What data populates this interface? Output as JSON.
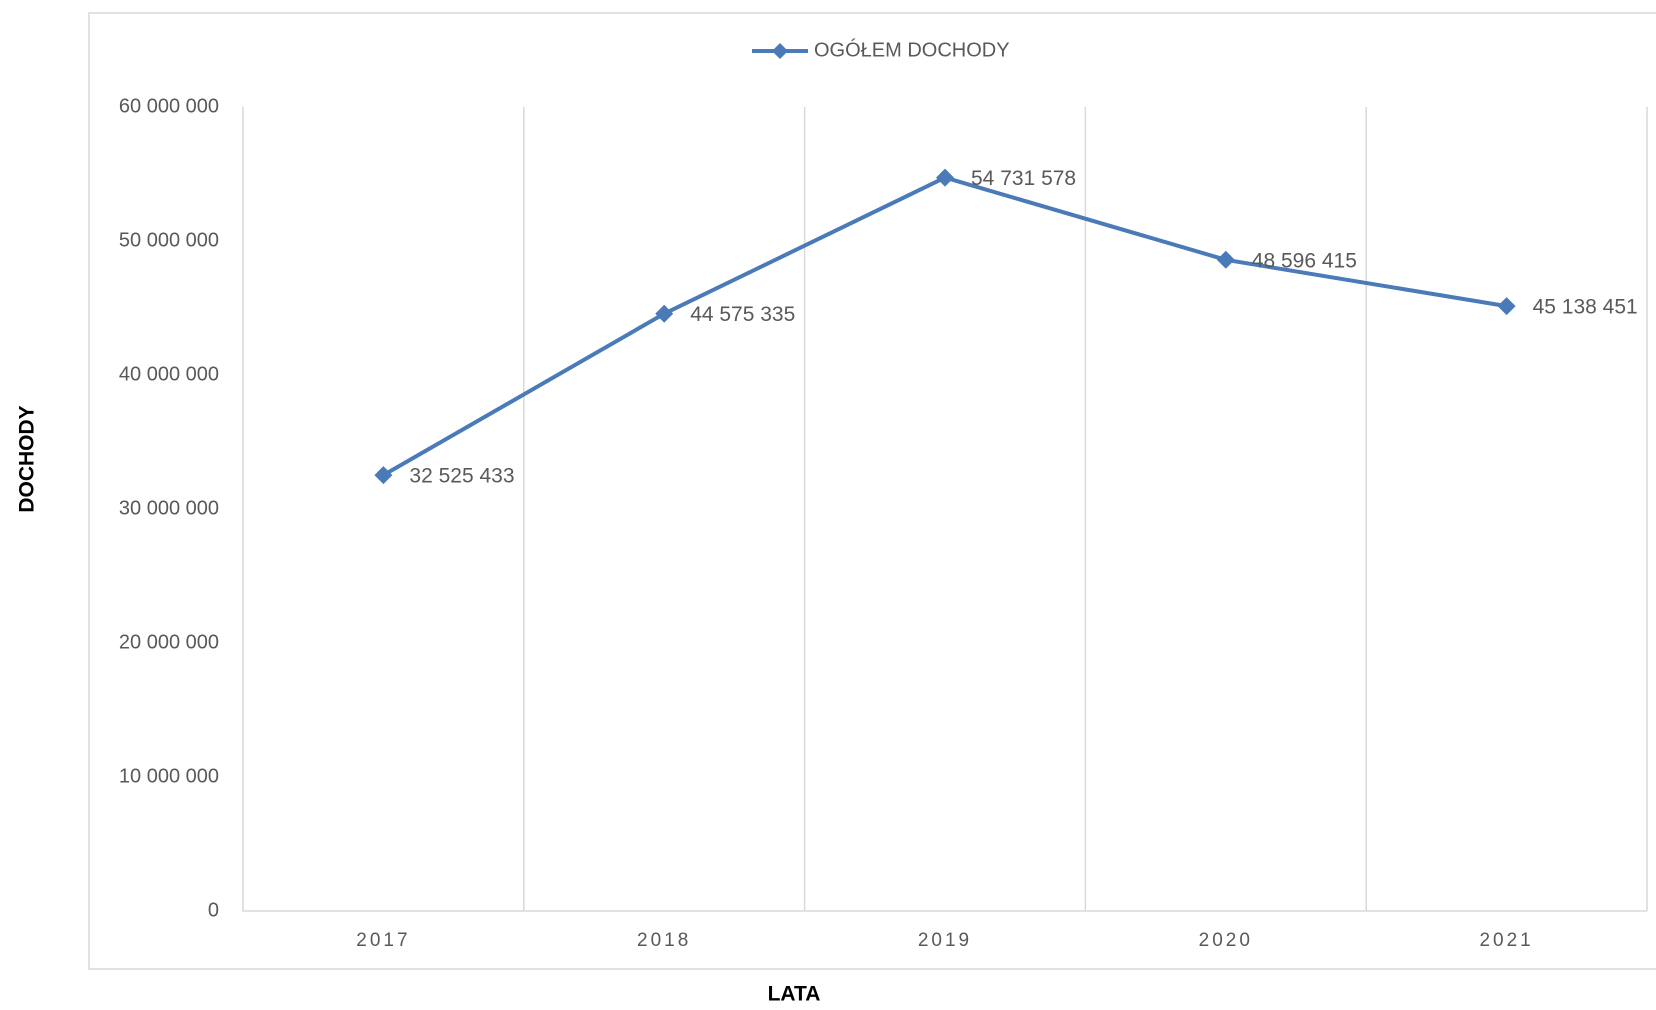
{
  "chart_data": {
    "type": "line",
    "x_label": "LATA",
    "y_label": "DOCHODY",
    "categories": [
      "2017",
      "2018",
      "2019",
      "2020",
      "2021"
    ],
    "series": [
      {
        "name": "OGÓŁEM DOCHODY",
        "color": "#4a7ab8",
        "values": [
          32525433,
          44575335,
          54731578,
          48596415,
          45138451
        ],
        "value_labels": [
          "32 525 433",
          "44 575 335",
          "54 731 578",
          "48 596 415",
          "45 138 451"
        ]
      }
    ],
    "ylim": [
      0,
      60000000
    ],
    "yticks": [
      0,
      {
        "value": 10000000,
        "label": "10 000 000"
      },
      {
        "value": 20000000,
        "label": "20 000 000"
      },
      {
        "value": 30000000,
        "label": "30 000 000"
      },
      {
        "value": 40000000,
        "label": "40 000 000"
      },
      {
        "value": 50000000,
        "label": "50 000 000"
      },
      {
        "value": 60000000,
        "label": "60 000 000"
      }
    ],
    "grid": true,
    "legend": "top"
  }
}
